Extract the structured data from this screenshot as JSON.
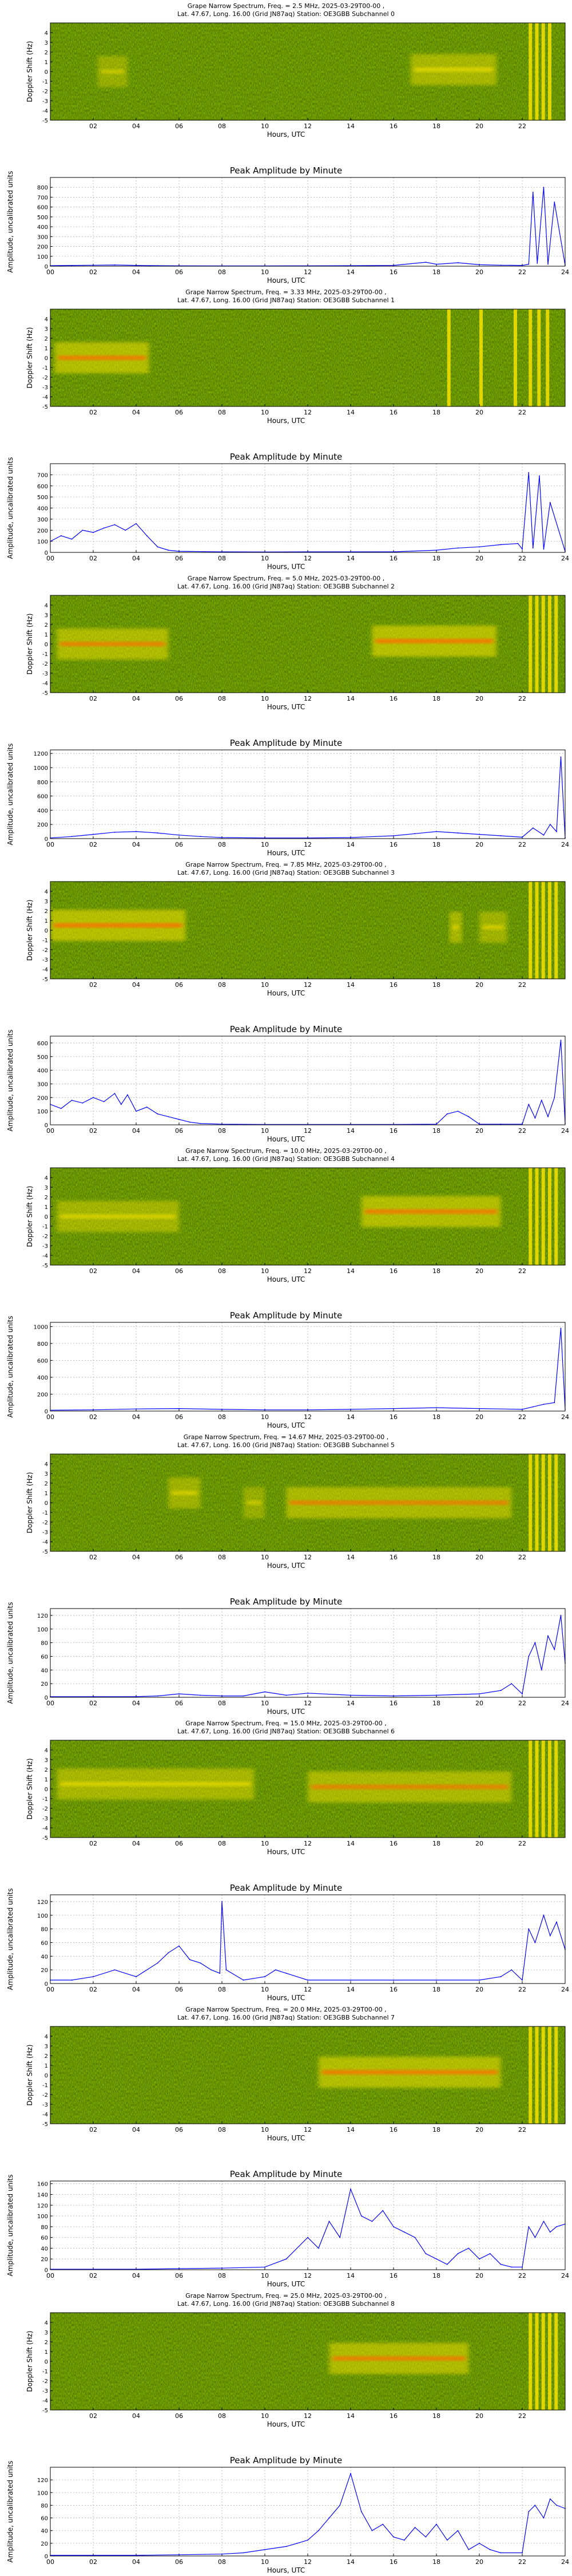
{
  "figure": {
    "doppler_ylabel": "Doppler Shift (Hz)",
    "doppler_yticks": [
      "-5",
      "-4",
      "-3",
      "-2",
      "-1",
      "0",
      "1",
      "2",
      "3",
      "4"
    ],
    "doppler_xticks": [
      "02",
      "04",
      "06",
      "08",
      "10",
      "12",
      "14",
      "16",
      "18",
      "20",
      "22"
    ],
    "amp_xticks": [
      "00",
      "02",
      "04",
      "06",
      "08",
      "10",
      "12",
      "14",
      "16",
      "18",
      "20",
      "22",
      "24"
    ],
    "xlabel": "Hours, UTC",
    "amp_title": "Peak Amplitude by Minute",
    "amp_ylabel": "Amplitude, uncalibrated units",
    "colors": {
      "line": "#0000ff",
      "spectrogram_base": "#1e8a00",
      "spectrogram_mid": "#8fcc00",
      "spectrogram_hot": "#f7e200",
      "spectrogram_peak": "#ff6a00",
      "grid": "#b0b0b0"
    }
  },
  "chart_data": [
    {
      "type": "heatmap",
      "title_line1": "Grape Narrow Spectrum, Freq. = 2.5 MHz, 2025-03-29T00-00 ,",
      "title_line2": "Lat.  47.67, Long.  16.00 (Grid JN87aq) Station: OE3GBB Subchannel 0",
      "xlabel": "Hours, UTC",
      "ylabel": "Doppler Shift (Hz)",
      "xlim": [
        0,
        24
      ],
      "ylim": [
        -5,
        5
      ],
      "traces": [
        {
          "x": [
            2.2,
            3.6
          ],
          "y": 0.0,
          "intensity": 0.6
        },
        {
          "x": [
            16.8,
            20.8
          ],
          "y": 0.2,
          "intensity": 0.8
        }
      ],
      "bands": [
        22.3,
        22.6,
        22.9,
        23.2
      ]
    },
    {
      "type": "line",
      "title": "Peak Amplitude by Minute",
      "xlabel": "Hours, UTC",
      "ylabel": "Amplitude, uncalibrated units",
      "xlim": [
        0,
        24
      ],
      "ylim": [
        0,
        900
      ],
      "yticks": [
        0,
        100,
        200,
        300,
        400,
        500,
        600,
        700,
        800
      ],
      "x": [
        0,
        1,
        2,
        3,
        4,
        5,
        6,
        8,
        10,
        12,
        14,
        16,
        17.5,
        18,
        19,
        20,
        21,
        22,
        22.3,
        22.5,
        22.7,
        23,
        23.2,
        23.5,
        24
      ],
      "y": [
        5,
        8,
        10,
        12,
        8,
        5,
        4,
        3,
        3,
        4,
        5,
        8,
        40,
        20,
        35,
        15,
        10,
        8,
        20,
        750,
        30,
        800,
        20,
        650,
        10
      ]
    },
    {
      "type": "heatmap",
      "title_line1": "Grape Narrow Spectrum, Freq. = 3.33 MHz, 2025-03-29T00-00 ,",
      "title_line2": "Lat.  47.67, Long.  16.00 (Grid JN87aq) Station: OE3GBB Subchannel 1",
      "xlabel": "Hours, UTC",
      "ylabel": "Doppler Shift (Hz)",
      "xlim": [
        0,
        24
      ],
      "ylim": [
        -5,
        5
      ],
      "traces": [
        {
          "x": [
            0.2,
            4.6
          ],
          "y": 0.0,
          "intensity": 0.95
        }
      ],
      "bands": [
        18.5,
        20.0,
        21.6,
        22.3,
        22.7,
        23.1
      ]
    },
    {
      "type": "line",
      "title": "Peak Amplitude by Minute",
      "xlabel": "Hours, UTC",
      "ylabel": "Amplitude, uncalibrated units",
      "xlim": [
        0,
        24
      ],
      "ylim": [
        0,
        800
      ],
      "yticks": [
        0,
        100,
        200,
        300,
        400,
        500,
        600,
        700
      ],
      "x": [
        0,
        0.5,
        1,
        1.5,
        2,
        2.5,
        3,
        3.5,
        4,
        4.5,
        5,
        5.5,
        6,
        8,
        10,
        12,
        14,
        16,
        18,
        19,
        20,
        21,
        21.8,
        22,
        22.3,
        22.5,
        22.8,
        23,
        23.3,
        24
      ],
      "y": [
        100,
        150,
        120,
        200,
        180,
        220,
        250,
        200,
        260,
        150,
        50,
        20,
        10,
        5,
        4,
        5,
        5,
        5,
        20,
        40,
        50,
        70,
        80,
        30,
        720,
        40,
        690,
        30,
        450,
        10
      ]
    },
    {
      "type": "heatmap",
      "title_line1": "Grape Narrow Spectrum, Freq. = 5.0 MHz, 2025-03-29T00-00 ,",
      "title_line2": "Lat.  47.67, Long.  16.00 (Grid JN87aq) Station: OE3GBB Subchannel 2",
      "xlabel": "Hours, UTC",
      "ylabel": "Doppler Shift (Hz)",
      "xlim": [
        0,
        24
      ],
      "ylim": [
        -5,
        5
      ],
      "traces": [
        {
          "x": [
            0.3,
            5.5
          ],
          "y": 0.0,
          "intensity": 0.9
        },
        {
          "x": [
            15.0,
            20.8
          ],
          "y": 0.3,
          "intensity": 1.0
        }
      ],
      "bands": [
        22.3,
        22.6,
        22.9,
        23.2,
        23.5
      ]
    },
    {
      "type": "line",
      "title": "Peak Amplitude by Minute",
      "xlabel": "Hours, UTC",
      "ylabel": "Amplitude, uncalibrated units",
      "xlim": [
        0,
        24
      ],
      "ylim": [
        0,
        1250
      ],
      "yticks": [
        0,
        200,
        400,
        600,
        800,
        1000,
        1200
      ],
      "x": [
        0,
        1,
        2,
        3,
        4,
        5,
        6,
        7,
        8,
        10,
        12,
        14,
        16,
        17,
        18,
        19,
        20,
        21,
        22,
        22.5,
        23,
        23.3,
        23.6,
        23.8,
        24
      ],
      "y": [
        10,
        30,
        60,
        90,
        100,
        80,
        50,
        30,
        15,
        10,
        10,
        15,
        40,
        70,
        100,
        80,
        60,
        40,
        20,
        150,
        50,
        200,
        100,
        1150,
        10
      ]
    },
    {
      "type": "heatmap",
      "title_line1": "Grape Narrow Spectrum, Freq. = 7.85 MHz, 2025-03-29T00-00 ,",
      "title_line2": "Lat.  47.67, Long.  16.00 (Grid JN87aq) Station: OE3GBB Subchannel 3",
      "xlabel": "Hours, UTC",
      "ylabel": "Doppler Shift (Hz)",
      "xlim": [
        0,
        24
      ],
      "ylim": [
        -5,
        5
      ],
      "traces": [
        {
          "x": [
            0.0,
            6.3
          ],
          "y": 0.5,
          "intensity": 1.0
        },
        {
          "x": [
            18.6,
            19.2
          ],
          "y": 0.3,
          "intensity": 0.8
        },
        {
          "x": [
            20.0,
            21.3
          ],
          "y": 0.3,
          "intensity": 0.7
        }
      ],
      "bands": [
        22.3,
        22.6,
        22.9,
        23.2,
        23.5
      ]
    },
    {
      "type": "line",
      "title": "Peak Amplitude by Minute",
      "xlabel": "Hours, UTC",
      "ylabel": "Amplitude, uncalibrated units",
      "xlim": [
        0,
        24
      ],
      "ylim": [
        0,
        650
      ],
      "yticks": [
        0,
        100,
        200,
        300,
        400,
        500,
        600
      ],
      "x": [
        0,
        0.5,
        1,
        1.5,
        2,
        2.5,
        3,
        3.3,
        3.6,
        4,
        4.5,
        5,
        5.5,
        6,
        6.5,
        7,
        8,
        10,
        12,
        14,
        16,
        18,
        18.5,
        19,
        19.5,
        20,
        21,
        22,
        22.3,
        22.6,
        22.9,
        23.2,
        23.5,
        23.8,
        24
      ],
      "y": [
        150,
        120,
        180,
        160,
        200,
        170,
        230,
        150,
        220,
        100,
        130,
        80,
        60,
        40,
        20,
        10,
        5,
        3,
        3,
        3,
        3,
        5,
        80,
        100,
        60,
        5,
        5,
        5,
        150,
        50,
        180,
        60,
        200,
        620,
        10
      ]
    },
    {
      "type": "heatmap",
      "title_line1": "Grape Narrow Spectrum, Freq. = 10.0 MHz, 2025-03-29T00-00 ,",
      "title_line2": "Lat.  47.67, Long.  16.00 (Grid JN87aq) Station: OE3GBB Subchannel 4",
      "xlabel": "Hours, UTC",
      "ylabel": "Doppler Shift (Hz)",
      "xlim": [
        0,
        24
      ],
      "ylim": [
        -5,
        5
      ],
      "traces": [
        {
          "x": [
            0.3,
            6.0
          ],
          "y": 0.0,
          "intensity": 0.75
        },
        {
          "x": [
            14.5,
            21.0
          ],
          "y": 0.5,
          "intensity": 0.95
        }
      ],
      "bands": [
        22.3,
        22.6,
        22.9,
        23.2,
        23.5
      ]
    },
    {
      "type": "line",
      "title": "Peak Amplitude by Minute",
      "xlabel": "Hours, UTC",
      "ylabel": "Amplitude, uncalibrated units",
      "xlim": [
        0,
        24
      ],
      "ylim": [
        0,
        1050
      ],
      "yticks": [
        0,
        200,
        400,
        600,
        800,
        1000
      ],
      "x": [
        0,
        2,
        4,
        6,
        8,
        10,
        12,
        14,
        16,
        18,
        20,
        22,
        22.5,
        23,
        23.5,
        23.8,
        24
      ],
      "y": [
        10,
        15,
        25,
        30,
        20,
        15,
        15,
        20,
        30,
        40,
        30,
        20,
        50,
        80,
        100,
        980,
        20
      ]
    },
    {
      "type": "heatmap",
      "title_line1": "Grape Narrow Spectrum, Freq. = 14.67 MHz, 2025-03-29T00-00 ,",
      "title_line2": "Lat.  47.67, Long.  16.00 (Grid JN87aq) Station: OE3GBB Subchannel 5",
      "xlabel": "Hours, UTC",
      "ylabel": "Doppler Shift (Hz)",
      "xlim": [
        0,
        24
      ],
      "ylim": [
        -5,
        5
      ],
      "traces": [
        {
          "x": [
            5.5,
            7.0
          ],
          "y": 1.0,
          "intensity": 0.7
        },
        {
          "x": [
            9.0,
            10.0
          ],
          "y": 0.0,
          "intensity": 0.6
        },
        {
          "x": [
            11.0,
            21.5
          ],
          "y": 0.0,
          "intensity": 0.85
        }
      ],
      "bands": [
        22.3,
        22.6,
        22.9,
        23.2,
        23.5
      ]
    },
    {
      "type": "line",
      "title": "Peak Amplitude by Minute",
      "xlabel": "Hours, UTC",
      "ylabel": "Amplitude, uncalibrated units",
      "xlim": [
        0,
        24
      ],
      "ylim": [
        0,
        130
      ],
      "yticks": [
        0,
        20,
        40,
        60,
        80,
        100,
        120
      ],
      "x": [
        0,
        2,
        4,
        5,
        6,
        7,
        8,
        9,
        10,
        11,
        12,
        14,
        16,
        18,
        20,
        21,
        21.5,
        22,
        22.3,
        22.6,
        22.9,
        23.2,
        23.5,
        23.8,
        24
      ],
      "y": [
        1,
        1,
        1,
        2,
        5,
        3,
        2,
        2,
        8,
        3,
        6,
        3,
        2,
        3,
        5,
        10,
        20,
        5,
        60,
        80,
        40,
        90,
        70,
        120,
        50
      ]
    },
    {
      "type": "heatmap",
      "title_line1": "Grape Narrow Spectrum, Freq. = 15.0 MHz, 2025-03-29T00-00 ,",
      "title_line2": "Lat.  47.67, Long.  16.00 (Grid JN87aq) Station: OE3GBB Subchannel 6",
      "xlabel": "Hours, UTC",
      "ylabel": "Doppler Shift (Hz)",
      "xlim": [
        0,
        24
      ],
      "ylim": [
        -5,
        5
      ],
      "traces": [
        {
          "x": [
            0.3,
            9.5
          ],
          "y": 0.5,
          "intensity": 0.8
        },
        {
          "x": [
            12.0,
            21.5
          ],
          "y": 0.2,
          "intensity": 0.85
        }
      ],
      "bands": [
        22.3,
        22.6,
        22.9,
        23.2,
        23.5
      ]
    },
    {
      "type": "line",
      "title": "Peak Amplitude by Minute",
      "xlabel": "Hours, UTC",
      "ylabel": "Amplitude, uncalibrated units",
      "xlim": [
        0,
        24
      ],
      "ylim": [
        0,
        130
      ],
      "yticks": [
        0,
        20,
        40,
        60,
        80,
        100,
        120
      ],
      "x": [
        0,
        1,
        2,
        3,
        4,
        5,
        5.5,
        6,
        6.5,
        7,
        7.5,
        7.9,
        8,
        8.2,
        9,
        10,
        10.5,
        11,
        12,
        14,
        16,
        18,
        20,
        21,
        21.5,
        22,
        22.3,
        22.6,
        23,
        23.3,
        23.6,
        24
      ],
      "y": [
        5,
        5,
        10,
        20,
        10,
        30,
        45,
        55,
        35,
        30,
        20,
        15,
        120,
        20,
        5,
        10,
        20,
        15,
        5,
        5,
        5,
        5,
        5,
        10,
        20,
        5,
        80,
        60,
        100,
        70,
        90,
        50
      ]
    },
    {
      "type": "heatmap",
      "title_line1": "Grape Narrow Spectrum, Freq. = 20.0 MHz, 2025-03-29T00-00 ,",
      "title_line2": "Lat.  47.67, Long.  16.00 (Grid JN87aq) Station: OE3GBB Subchannel 7",
      "xlabel": "Hours, UTC",
      "ylabel": "Doppler Shift (Hz)",
      "xlim": [
        0,
        24
      ],
      "ylim": [
        -5,
        5
      ],
      "traces": [
        {
          "x": [
            12.5,
            21.0
          ],
          "y": 0.3,
          "intensity": 0.95
        }
      ],
      "bands": [
        22.3,
        22.6,
        22.9,
        23.2,
        23.5
      ]
    },
    {
      "type": "line",
      "title": "Peak Amplitude by Minute",
      "xlabel": "Hours, UTC",
      "ylabel": "Amplitude, uncalibrated units",
      "xlim": [
        0,
        24
      ],
      "ylim": [
        0,
        165
      ],
      "yticks": [
        0,
        20,
        40,
        60,
        80,
        100,
        120,
        140,
        160
      ],
      "x": [
        0,
        2,
        4,
        6,
        8,
        10,
        11,
        12,
        12.5,
        13,
        13.5,
        14,
        14.5,
        15,
        15.5,
        16,
        16.5,
        17,
        17.5,
        18,
        18.5,
        19,
        19.5,
        20,
        20.5,
        21,
        21.5,
        22,
        22.3,
        22.6,
        23,
        23.3,
        23.6,
        24
      ],
      "y": [
        1,
        1,
        1,
        2,
        3,
        5,
        20,
        60,
        40,
        90,
        60,
        150,
        100,
        90,
        110,
        80,
        70,
        60,
        30,
        20,
        10,
        30,
        40,
        20,
        30,
        10,
        5,
        5,
        80,
        60,
        90,
        70,
        80,
        85
      ]
    },
    {
      "type": "heatmap",
      "title_line1": "Grape Narrow Spectrum, Freq. = 25.0 MHz, 2025-03-29T00-00 ,",
      "title_line2": "Lat.  47.67, Long.  16.00 (Grid JN87aq) Station: OE3GBB Subchannel 8",
      "xlabel": "Hours, UTC",
      "ylabel": "Doppler Shift (Hz)",
      "xlim": [
        0,
        24
      ],
      "ylim": [
        -5,
        5
      ],
      "traces": [
        {
          "x": [
            13.0,
            19.5
          ],
          "y": 0.3,
          "intensity": 0.9
        }
      ],
      "bands": [
        22.3,
        22.6,
        22.9,
        23.2,
        23.5
      ]
    },
    {
      "type": "line",
      "title": "Peak Amplitude by Minute",
      "xlabel": "Hours, UTC",
      "ylabel": "Amplitude, uncalibrated units",
      "xlim": [
        0,
        24
      ],
      "ylim": [
        0,
        140
      ],
      "yticks": [
        0,
        20,
        40,
        60,
        80,
        100,
        120
      ],
      "x": [
        0,
        2,
        4,
        6,
        8,
        9,
        10,
        11,
        11.5,
        12,
        12.5,
        13,
        13.5,
        14,
        14.5,
        15,
        15.5,
        16,
        16.5,
        17,
        17.5,
        18,
        18.5,
        19,
        19.5,
        20,
        20.5,
        21,
        22,
        22.3,
        22.6,
        23,
        23.3,
        23.6,
        24
      ],
      "y": [
        1,
        1,
        1,
        2,
        3,
        5,
        10,
        15,
        20,
        25,
        40,
        60,
        80,
        130,
        70,
        40,
        50,
        30,
        25,
        45,
        30,
        50,
        25,
        40,
        10,
        20,
        10,
        5,
        5,
        70,
        80,
        60,
        90,
        80,
        75
      ]
    }
  ]
}
